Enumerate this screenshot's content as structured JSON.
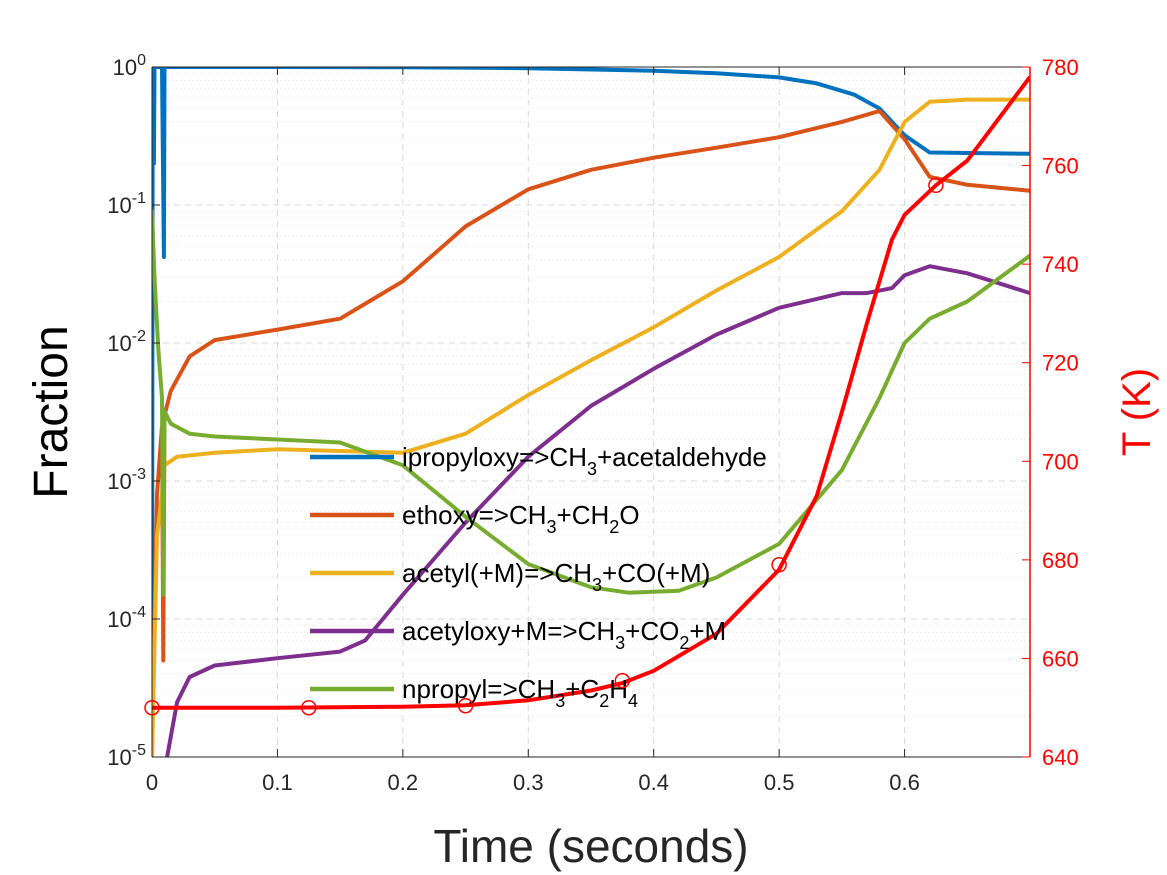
{
  "chart_data": {
    "type": "line",
    "xlabel": "Time (seconds)",
    "ylabel_left": "Fraction",
    "ylabel_right": "T (K)",
    "xlim": [
      0,
      0.7
    ],
    "ylim_left": [
      1e-05,
      1
    ],
    "yscale_left": "log",
    "ylim_right": [
      640,
      780
    ],
    "grid": true,
    "legend_position": "center",
    "x_ticks": [
      "0",
      "0.1",
      "0.2",
      "0.3",
      "0.4",
      "0.5",
      "0.6"
    ],
    "x_tick_values": [
      0,
      0.1,
      0.2,
      0.3,
      0.4,
      0.5,
      0.6
    ],
    "y_left_ticks": [
      {
        "value": 1,
        "base": "10",
        "exp": "0"
      },
      {
        "value": 0.1,
        "base": "10",
        "exp": "-1"
      },
      {
        "value": 0.01,
        "base": "10",
        "exp": "-2"
      },
      {
        "value": 0.001,
        "base": "10",
        "exp": "-3"
      },
      {
        "value": 0.0001,
        "base": "10",
        "exp": "-4"
      },
      {
        "value": 1e-05,
        "base": "10",
        "exp": "-5"
      }
    ],
    "y_right_ticks": [
      {
        "value": 640,
        "label": "640"
      },
      {
        "value": 660,
        "label": "660"
      },
      {
        "value": 680,
        "label": "680"
      },
      {
        "value": 700,
        "label": "700"
      },
      {
        "value": 720,
        "label": "720"
      },
      {
        "value": 740,
        "label": "740"
      },
      {
        "value": 760,
        "label": "760"
      },
      {
        "value": 780,
        "label": "780"
      }
    ],
    "series": [
      {
        "key": "ipropyloxy",
        "color": "#0072bd",
        "legend_parts": [
          [
            "ipropyloxy=>CH",
            ""
          ],
          [
            "3",
            "sub"
          ],
          [
            "+acetaldehyde",
            ""
          ]
        ],
        "points": [
          [
            0.0,
            1e-05
          ],
          [
            0.0005,
            0.2
          ],
          [
            0.001,
            1.0
          ],
          [
            0.0015,
            0.2
          ],
          [
            0.002,
            1.0
          ],
          [
            0.008,
            1.0
          ],
          [
            0.009,
            0.12
          ],
          [
            0.0095,
            0.042
          ],
          [
            0.01,
            1.0
          ],
          [
            0.1,
            1.0
          ],
          [
            0.2,
            0.995
          ],
          [
            0.3,
            0.98
          ],
          [
            0.4,
            0.94
          ],
          [
            0.45,
            0.9
          ],
          [
            0.5,
            0.84
          ],
          [
            0.53,
            0.76
          ],
          [
            0.56,
            0.63
          ],
          [
            0.58,
            0.5
          ],
          [
            0.6,
            0.32
          ],
          [
            0.62,
            0.24
          ],
          [
            0.7,
            0.235
          ]
        ]
      },
      {
        "key": "ethoxy",
        "color": "#d95319",
        "legend_parts": [
          [
            "ethoxy=>CH",
            ""
          ],
          [
            "3",
            "sub"
          ],
          [
            "+CH",
            ""
          ],
          [
            "2",
            "sub"
          ],
          [
            "O",
            ""
          ]
        ],
        "points": [
          [
            0.0,
            1e-05
          ],
          [
            0.004,
            0.0008
          ],
          [
            0.008,
            0.0025
          ],
          [
            0.009,
            5e-05
          ],
          [
            0.01,
            0.003
          ],
          [
            0.015,
            0.0045
          ],
          [
            0.03,
            0.008
          ],
          [
            0.05,
            0.0105
          ],
          [
            0.1,
            0.0125
          ],
          [
            0.15,
            0.015
          ],
          [
            0.2,
            0.028
          ],
          [
            0.25,
            0.07
          ],
          [
            0.3,
            0.13
          ],
          [
            0.35,
            0.18
          ],
          [
            0.4,
            0.22
          ],
          [
            0.45,
            0.26
          ],
          [
            0.5,
            0.31
          ],
          [
            0.55,
            0.4
          ],
          [
            0.58,
            0.48
          ],
          [
            0.6,
            0.3
          ],
          [
            0.62,
            0.16
          ],
          [
            0.65,
            0.14
          ],
          [
            0.7,
            0.127
          ]
        ]
      },
      {
        "key": "acetyl",
        "color": "#edb120",
        "legend_parts": [
          [
            "acetyl(+M)=>CH",
            ""
          ],
          [
            "3",
            "sub"
          ],
          [
            "+CO(+M)",
            ""
          ]
        ],
        "points": [
          [
            0.0,
            1e-05
          ],
          [
            0.004,
            0.0004
          ],
          [
            0.008,
            0.0008
          ],
          [
            0.01,
            0.0013
          ],
          [
            0.02,
            0.0015
          ],
          [
            0.05,
            0.0016
          ],
          [
            0.1,
            0.0017
          ],
          [
            0.15,
            0.00165
          ],
          [
            0.2,
            0.0016
          ],
          [
            0.25,
            0.0022
          ],
          [
            0.3,
            0.0042
          ],
          [
            0.35,
            0.0075
          ],
          [
            0.4,
            0.013
          ],
          [
            0.45,
            0.024
          ],
          [
            0.5,
            0.042
          ],
          [
            0.55,
            0.09
          ],
          [
            0.58,
            0.18
          ],
          [
            0.6,
            0.4
          ],
          [
            0.62,
            0.56
          ],
          [
            0.65,
            0.58
          ],
          [
            0.7,
            0.58
          ]
        ]
      },
      {
        "key": "acetyloxy",
        "color": "#7e2f8e",
        "legend_parts": [
          [
            "acetyloxy+M=>CH",
            ""
          ],
          [
            "3",
            "sub"
          ],
          [
            "+CO",
            ""
          ],
          [
            "2",
            "sub"
          ],
          [
            "+M",
            ""
          ]
        ],
        "points": [
          [
            0.012,
            1e-05
          ],
          [
            0.02,
            2.5e-05
          ],
          [
            0.03,
            3.8e-05
          ],
          [
            0.05,
            4.6e-05
          ],
          [
            0.1,
            5.2e-05
          ],
          [
            0.15,
            5.8e-05
          ],
          [
            0.17,
            7e-05
          ],
          [
            0.2,
            0.00015
          ],
          [
            0.25,
            0.0005
          ],
          [
            0.3,
            0.0015
          ],
          [
            0.35,
            0.0035
          ],
          [
            0.4,
            0.0065
          ],
          [
            0.45,
            0.0115
          ],
          [
            0.5,
            0.018
          ],
          [
            0.55,
            0.023
          ],
          [
            0.57,
            0.023
          ],
          [
            0.59,
            0.025
          ],
          [
            0.6,
            0.031
          ],
          [
            0.62,
            0.036
          ],
          [
            0.65,
            0.032
          ],
          [
            0.7,
            0.023
          ]
        ]
      },
      {
        "key": "npropyl",
        "color": "#77ac30",
        "legend_parts": [
          [
            "npropyl=>CH",
            ""
          ],
          [
            "3",
            "sub"
          ],
          [
            "+C",
            ""
          ],
          [
            "2",
            "sub"
          ],
          [
            "H",
            ""
          ],
          [
            "4",
            "sub"
          ]
        ],
        "points": [
          [
            0.0,
            0.09
          ],
          [
            0.002,
            0.03
          ],
          [
            0.005,
            0.009
          ],
          [
            0.008,
            0.004
          ],
          [
            0.009,
            0.00015
          ],
          [
            0.01,
            0.0032
          ],
          [
            0.015,
            0.0026
          ],
          [
            0.03,
            0.0022
          ],
          [
            0.05,
            0.0021
          ],
          [
            0.1,
            0.002
          ],
          [
            0.15,
            0.0019
          ],
          [
            0.2,
            0.0013
          ],
          [
            0.25,
            0.00055
          ],
          [
            0.3,
            0.00025
          ],
          [
            0.35,
            0.00017
          ],
          [
            0.38,
            0.000155
          ],
          [
            0.42,
            0.00016
          ],
          [
            0.45,
            0.0002
          ],
          [
            0.5,
            0.00035
          ],
          [
            0.55,
            0.0012
          ],
          [
            0.58,
            0.004
          ],
          [
            0.6,
            0.01
          ],
          [
            0.62,
            0.015
          ],
          [
            0.65,
            0.02
          ],
          [
            0.7,
            0.043
          ]
        ]
      }
    ],
    "temperature_series": {
      "name": "T (K)",
      "color": "#ff0000",
      "axis": "right",
      "points": [
        [
          0.0,
          650
        ],
        [
          0.1,
          650
        ],
        [
          0.2,
          650.2
        ],
        [
          0.25,
          650.5
        ],
        [
          0.3,
          651.5
        ],
        [
          0.35,
          653.5
        ],
        [
          0.375,
          655
        ],
        [
          0.4,
          657.5
        ],
        [
          0.45,
          665
        ],
        [
          0.5,
          678
        ],
        [
          0.53,
          693
        ],
        [
          0.55,
          710
        ],
        [
          0.57,
          728
        ],
        [
          0.59,
          745
        ],
        [
          0.6,
          750
        ],
        [
          0.625,
          756
        ],
        [
          0.65,
          761
        ],
        [
          0.7,
          778
        ]
      ],
      "markers": [
        [
          0.0,
          650
        ],
        [
          0.125,
          650
        ],
        [
          0.25,
          650.4
        ],
        [
          0.375,
          655.5
        ],
        [
          0.5,
          679
        ],
        [
          0.625,
          756
        ]
      ]
    }
  }
}
